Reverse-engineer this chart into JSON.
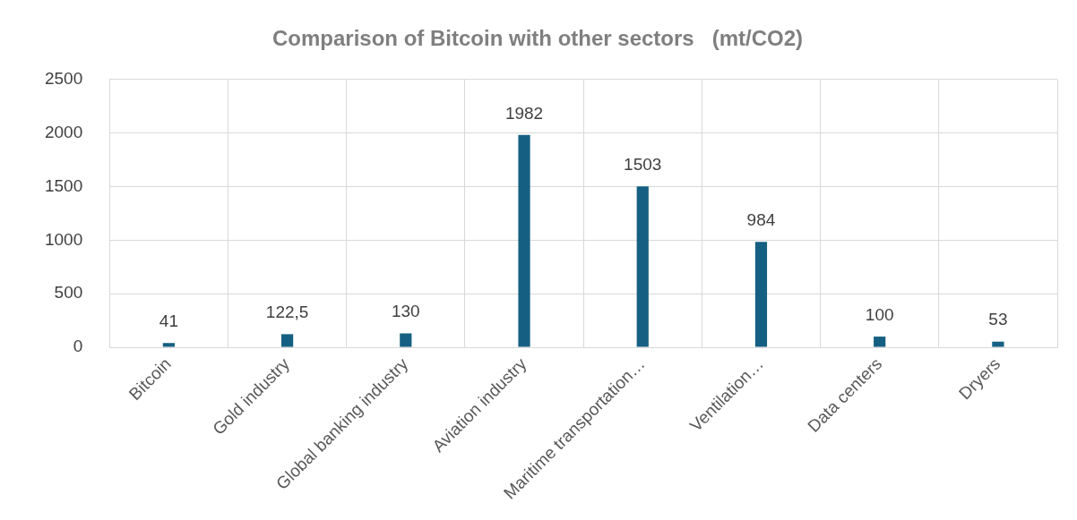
{
  "chart_data": {
    "type": "bar",
    "title": "Comparison of Bitcoin with other sectors   (mt/CO2)",
    "categories": [
      "Bitcoin",
      "Gold industry",
      "Global banking industry",
      "Aviation industry",
      "Maritime transportation…",
      "Ventilation…",
      "Data centers",
      "Dryers"
    ],
    "values": [
      41,
      122.5,
      130,
      1982,
      1503,
      984,
      100,
      53
    ],
    "value_labels": [
      "41",
      "122,5",
      "130",
      "1982",
      "1503",
      "984",
      "100",
      "53"
    ],
    "color": "#156082",
    "ylim": [
      0,
      2500
    ],
    "yticks": [
      0,
      500,
      1000,
      1500,
      2000,
      2500
    ],
    "grid": true
  }
}
